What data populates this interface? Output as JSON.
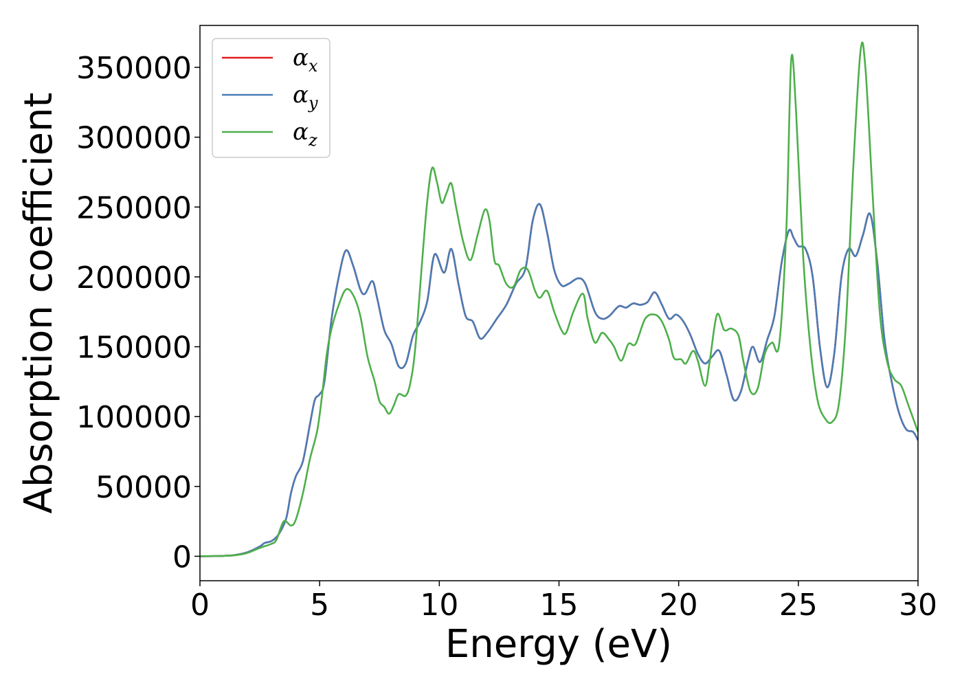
{
  "chart_data": {
    "type": "line",
    "xlabel": "Energy (eV)",
    "ylabel": "Absorption coefficient",
    "xlim": [
      0,
      30
    ],
    "ylim": [
      -17500,
      380000
    ],
    "xticks": [
      0,
      5,
      10,
      15,
      20,
      25,
      30
    ],
    "xtick_labels": [
      "0",
      "5",
      "10",
      "15",
      "20",
      "25",
      "30"
    ],
    "yticks": [
      0,
      50000,
      100000,
      150000,
      200000,
      250000,
      300000,
      350000
    ],
    "ytick_labels": [
      "0",
      "50000",
      "100000",
      "150000",
      "200000",
      "250000",
      "300000",
      "350000"
    ],
    "grid": false,
    "legend_position": "top-left",
    "series": [
      {
        "name": "α_x",
        "legend_symbol": "α",
        "legend_subscript": "x",
        "color": "#e41a1c",
        "points": [
          [
            0,
            0
          ],
          [
            1,
            300
          ],
          [
            1.5,
            1000
          ],
          [
            2,
            3000
          ],
          [
            2.5,
            7000
          ],
          [
            2.7,
            9500
          ],
          [
            3,
            11000
          ],
          [
            3.3,
            16000
          ],
          [
            3.6,
            27000
          ],
          [
            3.8,
            45000
          ],
          [
            4,
            57000
          ],
          [
            4.3,
            68000
          ],
          [
            4.6,
            95000
          ],
          [
            4.8,
            112000
          ],
          [
            5,
            116000
          ],
          [
            5.2,
            125000
          ],
          [
            5.5,
            170000
          ],
          [
            5.8,
            200000
          ],
          [
            6.1,
            219000
          ],
          [
            6.4,
            208000
          ],
          [
            6.7,
            191000
          ],
          [
            6.9,
            188000
          ],
          [
            7.2,
            197000
          ],
          [
            7.4,
            185000
          ],
          [
            7.7,
            162000
          ],
          [
            8,
            152000
          ],
          [
            8.3,
            136000
          ],
          [
            8.6,
            138000
          ],
          [
            8.9,
            158000
          ],
          [
            9.2,
            168000
          ],
          [
            9.5,
            183000
          ],
          [
            9.8,
            216000
          ],
          [
            10.2,
            203000
          ],
          [
            10.5,
            220000
          ],
          [
            10.8,
            195000
          ],
          [
            11.1,
            172000
          ],
          [
            11.4,
            168000
          ],
          [
            11.7,
            156000
          ],
          [
            12,
            160000
          ],
          [
            12.4,
            170000
          ],
          [
            12.8,
            180000
          ],
          [
            13.2,
            195000
          ],
          [
            13.6,
            206000
          ],
          [
            13.9,
            240000
          ],
          [
            14.2,
            252000
          ],
          [
            14.5,
            232000
          ],
          [
            14.8,
            205000
          ],
          [
            15.1,
            194000
          ],
          [
            15.4,
            195000
          ],
          [
            15.8,
            199000
          ],
          [
            16.1,
            195000
          ],
          [
            16.5,
            175000
          ],
          [
            16.8,
            170000
          ],
          [
            17.1,
            172000
          ],
          [
            17.5,
            179000
          ],
          [
            17.8,
            178000
          ],
          [
            18.1,
            181000
          ],
          [
            18.4,
            180000
          ],
          [
            18.7,
            182000
          ],
          [
            19,
            189000
          ],
          [
            19.3,
            180000
          ],
          [
            19.6,
            170000
          ],
          [
            19.9,
            173000
          ],
          [
            20.2,
            168000
          ],
          [
            20.5,
            158000
          ],
          [
            20.8,
            145000
          ],
          [
            21.1,
            138000
          ],
          [
            21.4,
            143000
          ],
          [
            21.7,
            147000
          ],
          [
            22,
            130000
          ],
          [
            22.3,
            112000
          ],
          [
            22.6,
            118000
          ],
          [
            22.9,
            140000
          ],
          [
            23.1,
            150000
          ],
          [
            23.4,
            139000
          ],
          [
            23.7,
            155000
          ],
          [
            24,
            172000
          ],
          [
            24.3,
            210000
          ],
          [
            24.6,
            233000
          ],
          [
            24.8,
            228000
          ],
          [
            25,
            222000
          ],
          [
            25.3,
            220000
          ],
          [
            25.6,
            200000
          ],
          [
            25.9,
            150000
          ],
          [
            26.2,
            121000
          ],
          [
            26.5,
            145000
          ],
          [
            26.8,
            200000
          ],
          [
            27.1,
            220000
          ],
          [
            27.4,
            215000
          ],
          [
            27.7,
            230000
          ],
          [
            28,
            245000
          ],
          [
            28.3,
            210000
          ],
          [
            28.6,
            155000
          ],
          [
            28.9,
            125000
          ],
          [
            29.2,
            103000
          ],
          [
            29.5,
            91000
          ],
          [
            29.8,
            89000
          ],
          [
            30,
            83000
          ]
        ]
      },
      {
        "name": "α_y",
        "legend_symbol": "α",
        "legend_subscript": "y",
        "color": "#4a7cb5",
        "points": [
          [
            0,
            0
          ],
          [
            1,
            300
          ],
          [
            1.5,
            1000
          ],
          [
            2,
            3000
          ],
          [
            2.5,
            7000
          ],
          [
            2.7,
            9500
          ],
          [
            3,
            11000
          ],
          [
            3.3,
            16000
          ],
          [
            3.6,
            27000
          ],
          [
            3.8,
            45000
          ],
          [
            4,
            57000
          ],
          [
            4.3,
            68000
          ],
          [
            4.6,
            95000
          ],
          [
            4.8,
            112000
          ],
          [
            5,
            116000
          ],
          [
            5.2,
            125000
          ],
          [
            5.5,
            170000
          ],
          [
            5.8,
            200000
          ],
          [
            6.1,
            219000
          ],
          [
            6.4,
            208000
          ],
          [
            6.7,
            191000
          ],
          [
            6.9,
            188000
          ],
          [
            7.2,
            197000
          ],
          [
            7.4,
            185000
          ],
          [
            7.7,
            162000
          ],
          [
            8,
            152000
          ],
          [
            8.3,
            136000
          ],
          [
            8.6,
            138000
          ],
          [
            8.9,
            158000
          ],
          [
            9.2,
            168000
          ],
          [
            9.5,
            183000
          ],
          [
            9.8,
            216000
          ],
          [
            10.2,
            203000
          ],
          [
            10.5,
            220000
          ],
          [
            10.8,
            195000
          ],
          [
            11.1,
            172000
          ],
          [
            11.4,
            168000
          ],
          [
            11.7,
            156000
          ],
          [
            12,
            160000
          ],
          [
            12.4,
            170000
          ],
          [
            12.8,
            180000
          ],
          [
            13.2,
            195000
          ],
          [
            13.6,
            206000
          ],
          [
            13.9,
            240000
          ],
          [
            14.2,
            252000
          ],
          [
            14.5,
            232000
          ],
          [
            14.8,
            205000
          ],
          [
            15.1,
            194000
          ],
          [
            15.4,
            195000
          ],
          [
            15.8,
            199000
          ],
          [
            16.1,
            195000
          ],
          [
            16.5,
            175000
          ],
          [
            16.8,
            170000
          ],
          [
            17.1,
            172000
          ],
          [
            17.5,
            179000
          ],
          [
            17.8,
            178000
          ],
          [
            18.1,
            181000
          ],
          [
            18.4,
            180000
          ],
          [
            18.7,
            182000
          ],
          [
            19,
            189000
          ],
          [
            19.3,
            180000
          ],
          [
            19.6,
            170000
          ],
          [
            19.9,
            173000
          ],
          [
            20.2,
            168000
          ],
          [
            20.5,
            158000
          ],
          [
            20.8,
            145000
          ],
          [
            21.1,
            138000
          ],
          [
            21.4,
            143000
          ],
          [
            21.7,
            147000
          ],
          [
            22,
            130000
          ],
          [
            22.3,
            112000
          ],
          [
            22.6,
            118000
          ],
          [
            22.9,
            140000
          ],
          [
            23.1,
            150000
          ],
          [
            23.4,
            139000
          ],
          [
            23.7,
            155000
          ],
          [
            24,
            172000
          ],
          [
            24.3,
            210000
          ],
          [
            24.6,
            233000
          ],
          [
            24.8,
            228000
          ],
          [
            25,
            222000
          ],
          [
            25.3,
            220000
          ],
          [
            25.6,
            200000
          ],
          [
            25.9,
            150000
          ],
          [
            26.2,
            121000
          ],
          [
            26.5,
            145000
          ],
          [
            26.8,
            200000
          ],
          [
            27.1,
            220000
          ],
          [
            27.4,
            215000
          ],
          [
            27.7,
            230000
          ],
          [
            28,
            245000
          ],
          [
            28.3,
            210000
          ],
          [
            28.6,
            155000
          ],
          [
            28.9,
            125000
          ],
          [
            29.2,
            103000
          ],
          [
            29.5,
            91000
          ],
          [
            29.8,
            89000
          ],
          [
            30,
            83000
          ]
        ]
      },
      {
        "name": "α_z",
        "legend_symbol": "α",
        "legend_subscript": "z",
        "color": "#4daf4a",
        "points": [
          [
            0,
            0
          ],
          [
            1,
            300
          ],
          [
            1.5,
            800
          ],
          [
            2,
            2500
          ],
          [
            2.5,
            6000
          ],
          [
            3,
            9000
          ],
          [
            3.2,
            12000
          ],
          [
            3.5,
            25000
          ],
          [
            3.8,
            22000
          ],
          [
            4,
            26000
          ],
          [
            4.3,
            45000
          ],
          [
            4.6,
            70000
          ],
          [
            4.9,
            90000
          ],
          [
            5.1,
            115000
          ],
          [
            5.3,
            145000
          ],
          [
            5.5,
            163000
          ],
          [
            5.8,
            180000
          ],
          [
            6.1,
            191000
          ],
          [
            6.4,
            187000
          ],
          [
            6.7,
            172000
          ],
          [
            7,
            143000
          ],
          [
            7.3,
            125000
          ],
          [
            7.5,
            111000
          ],
          [
            7.7,
            107000
          ],
          [
            7.9,
            102000
          ],
          [
            8.1,
            108000
          ],
          [
            8.3,
            116000
          ],
          [
            8.6,
            115000
          ],
          [
            8.8,
            125000
          ],
          [
            9,
            150000
          ],
          [
            9.3,
            215000
          ],
          [
            9.5,
            255000
          ],
          [
            9.7,
            278000
          ],
          [
            9.9,
            268000
          ],
          [
            10.1,
            253000
          ],
          [
            10.3,
            260000
          ],
          [
            10.5,
            267000
          ],
          [
            10.7,
            250000
          ],
          [
            11,
            225000
          ],
          [
            11.3,
            212000
          ],
          [
            11.6,
            230000
          ],
          [
            11.9,
            248000
          ],
          [
            12.1,
            240000
          ],
          [
            12.3,
            212000
          ],
          [
            12.5,
            208000
          ],
          [
            12.8,
            195000
          ],
          [
            13.1,
            193000
          ],
          [
            13.4,
            205000
          ],
          [
            13.7,
            205000
          ],
          [
            14,
            190000
          ],
          [
            14.2,
            185000
          ],
          [
            14.5,
            190000
          ],
          [
            14.8,
            175000
          ],
          [
            15.1,
            162000
          ],
          [
            15.3,
            160000
          ],
          [
            15.6,
            175000
          ],
          [
            16,
            188000
          ],
          [
            16.2,
            170000
          ],
          [
            16.5,
            153000
          ],
          [
            16.8,
            160000
          ],
          [
            17.1,
            155000
          ],
          [
            17.3,
            150000
          ],
          [
            17.6,
            140000
          ],
          [
            17.9,
            152000
          ],
          [
            18.2,
            152000
          ],
          [
            18.6,
            170000
          ],
          [
            19,
            173000
          ],
          [
            19.3,
            168000
          ],
          [
            19.6,
            155000
          ],
          [
            19.8,
            142000
          ],
          [
            20.1,
            141000
          ],
          [
            20.3,
            138000
          ],
          [
            20.6,
            147000
          ],
          [
            20.8,
            140000
          ],
          [
            21.1,
            122000
          ],
          [
            21.3,
            140000
          ],
          [
            21.6,
            173000
          ],
          [
            21.9,
            162000
          ],
          [
            22.2,
            163000
          ],
          [
            22.5,
            158000
          ],
          [
            22.7,
            140000
          ],
          [
            23,
            118000
          ],
          [
            23.3,
            120000
          ],
          [
            23.6,
            145000
          ],
          [
            23.9,
            153000
          ],
          [
            24.2,
            152000
          ],
          [
            24.5,
            235000
          ],
          [
            24.7,
            355000
          ],
          [
            24.9,
            320000
          ],
          [
            25.2,
            215000
          ],
          [
            25.5,
            150000
          ],
          [
            25.8,
            112000
          ],
          [
            26.1,
            99000
          ],
          [
            26.4,
            96000
          ],
          [
            26.7,
            110000
          ],
          [
            27,
            170000
          ],
          [
            27.3,
            280000
          ],
          [
            27.6,
            362000
          ],
          [
            27.8,
            350000
          ],
          [
            28.1,
            260000
          ],
          [
            28.4,
            175000
          ],
          [
            28.7,
            140000
          ],
          [
            29,
            127000
          ],
          [
            29.3,
            122000
          ],
          [
            29.6,
            108000
          ],
          [
            30,
            89000
          ]
        ]
      }
    ]
  }
}
